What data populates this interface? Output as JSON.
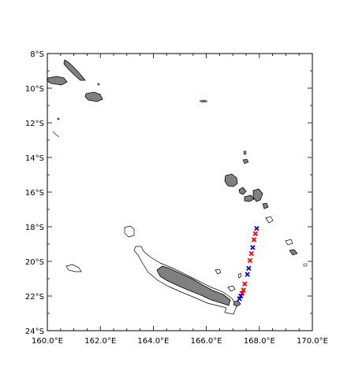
{
  "map": {
    "lon_range": [
      160,
      170
    ],
    "lat_range": [
      -24,
      -8
    ],
    "x_ticks": [
      {
        "value": 160,
        "label": "160.0°E"
      },
      {
        "value": 162,
        "label": "162.0°E"
      },
      {
        "value": 164,
        "label": "164.0°E"
      },
      {
        "value": 166,
        "label": "166.0°E"
      },
      {
        "value": 168,
        "label": "168.0°E"
      },
      {
        "value": 170,
        "label": "170.0°E"
      }
    ],
    "y_ticks": [
      {
        "value": -8,
        "label": "8°S"
      },
      {
        "value": -10,
        "label": "10°S"
      },
      {
        "value": -12,
        "label": "12°S"
      },
      {
        "value": -14,
        "label": "14°S"
      },
      {
        "value": -16,
        "label": "16°S"
      },
      {
        "value": -18,
        "label": "18°S"
      },
      {
        "value": -20,
        "label": "20°S"
      },
      {
        "value": -22,
        "label": "22°S"
      },
      {
        "value": -24,
        "label": "24°S"
      }
    ],
    "colors": {
      "land_fill": "#808080",
      "coast_line": "#000000",
      "marker_red": "#ff0000",
      "marker_blue": "#0000ff"
    },
    "markers": [
      {
        "lon": 167.9,
        "lat": -18.1,
        "color": "blue"
      },
      {
        "lon": 167.85,
        "lat": -18.4,
        "color": "red"
      },
      {
        "lon": 167.8,
        "lat": -18.75,
        "color": "red"
      },
      {
        "lon": 167.75,
        "lat": -19.2,
        "color": "blue"
      },
      {
        "lon": 167.7,
        "lat": -19.55,
        "color": "red"
      },
      {
        "lon": 167.65,
        "lat": -19.95,
        "color": "red"
      },
      {
        "lon": 167.6,
        "lat": -20.4,
        "color": "blue"
      },
      {
        "lon": 167.55,
        "lat": -20.75,
        "color": "blue"
      },
      {
        "lon": 167.45,
        "lat": -21.3,
        "color": "red"
      },
      {
        "lon": 167.4,
        "lat": -21.65,
        "color": "red"
      },
      {
        "lon": 167.35,
        "lat": -21.85,
        "color": "red"
      },
      {
        "lon": 167.3,
        "lat": -22.0,
        "color": "blue"
      },
      {
        "lon": 167.25,
        "lat": -22.15,
        "color": "blue"
      }
    ]
  }
}
